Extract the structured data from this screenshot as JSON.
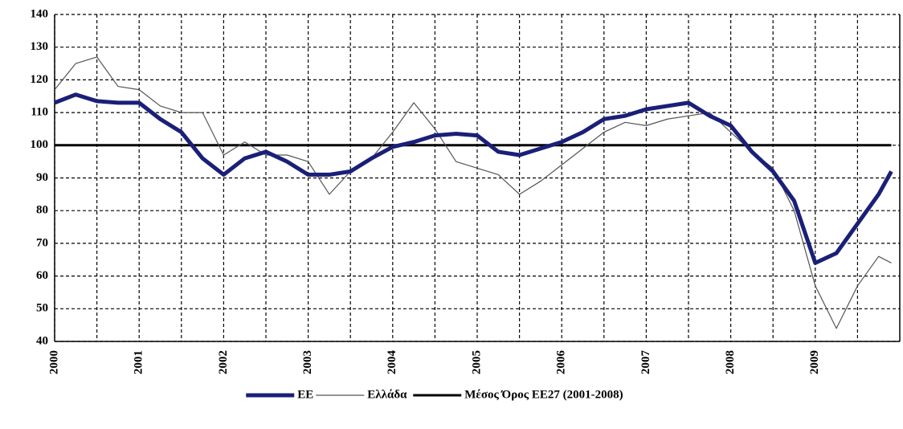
{
  "chart_data": {
    "type": "line",
    "x": [
      2000,
      2000.25,
      2000.5,
      2000.75,
      2001,
      2001.25,
      2001.5,
      2001.75,
      2002,
      2002.25,
      2002.5,
      2002.75,
      2003,
      2003.25,
      2003.5,
      2003.75,
      2004,
      2004.25,
      2004.5,
      2004.75,
      2005,
      2005.25,
      2005.5,
      2005.75,
      2006,
      2006.25,
      2006.5,
      2006.75,
      2007,
      2007.25,
      2007.5,
      2007.75,
      2008,
      2008.25,
      2008.5,
      2008.75,
      2009,
      2009.25,
      2009.5,
      2009.75,
      2009.9
    ],
    "series": [
      {
        "name": "ΕΕ",
        "color": "#1a1f78",
        "width": 5,
        "values": [
          113,
          115.5,
          113.5,
          113,
          113,
          108,
          104,
          96,
          91,
          96,
          98,
          95,
          91,
          91,
          92,
          96,
          99.5,
          101,
          103,
          103.5,
          103,
          98,
          97,
          99,
          101,
          104,
          108,
          109,
          111,
          112,
          113,
          109,
          106,
          98,
          92,
          83,
          64,
          67,
          76,
          85,
          92
        ]
      },
      {
        "name": "Ελλάδα",
        "color": "#555555",
        "width": 1.2,
        "values": [
          117,
          125,
          127,
          118,
          117,
          112,
          110,
          110,
          97,
          101,
          97,
          97,
          95,
          85,
          92,
          96,
          104,
          113,
          105,
          95,
          93,
          91,
          85,
          89,
          94,
          99,
          104,
          107,
          106,
          108,
          109,
          110,
          104,
          98,
          93,
          80,
          57,
          44,
          57,
          66,
          64
        ]
      },
      {
        "name": "Μέσος Όρος ΕΕ27 (2001-2008)",
        "color": "#000000",
        "width": 3,
        "values": [
          100,
          100,
          100,
          100,
          100,
          100,
          100,
          100,
          100,
          100,
          100,
          100,
          100,
          100,
          100,
          100,
          100,
          100,
          100,
          100,
          100,
          100,
          100,
          100,
          100,
          100,
          100,
          100,
          100,
          100,
          100,
          100,
          100,
          100,
          100,
          100,
          100,
          100,
          100,
          100,
          100
        ]
      }
    ],
    "xlim": [
      2000,
      2010
    ],
    "xticks": [
      2000,
      2001,
      2002,
      2003,
      2004,
      2005,
      2006,
      2007,
      2008,
      2009
    ],
    "xminorticks": [
      2000.5,
      2001.5,
      2002.5,
      2003.5,
      2004.5,
      2005.5,
      2006.5,
      2007.5,
      2008.5,
      2009.5
    ],
    "ylim": [
      40,
      140
    ],
    "yticks": [
      40,
      50,
      60,
      70,
      80,
      90,
      100,
      110,
      120,
      130,
      140
    ],
    "grid": true,
    "legend": "bottom"
  }
}
